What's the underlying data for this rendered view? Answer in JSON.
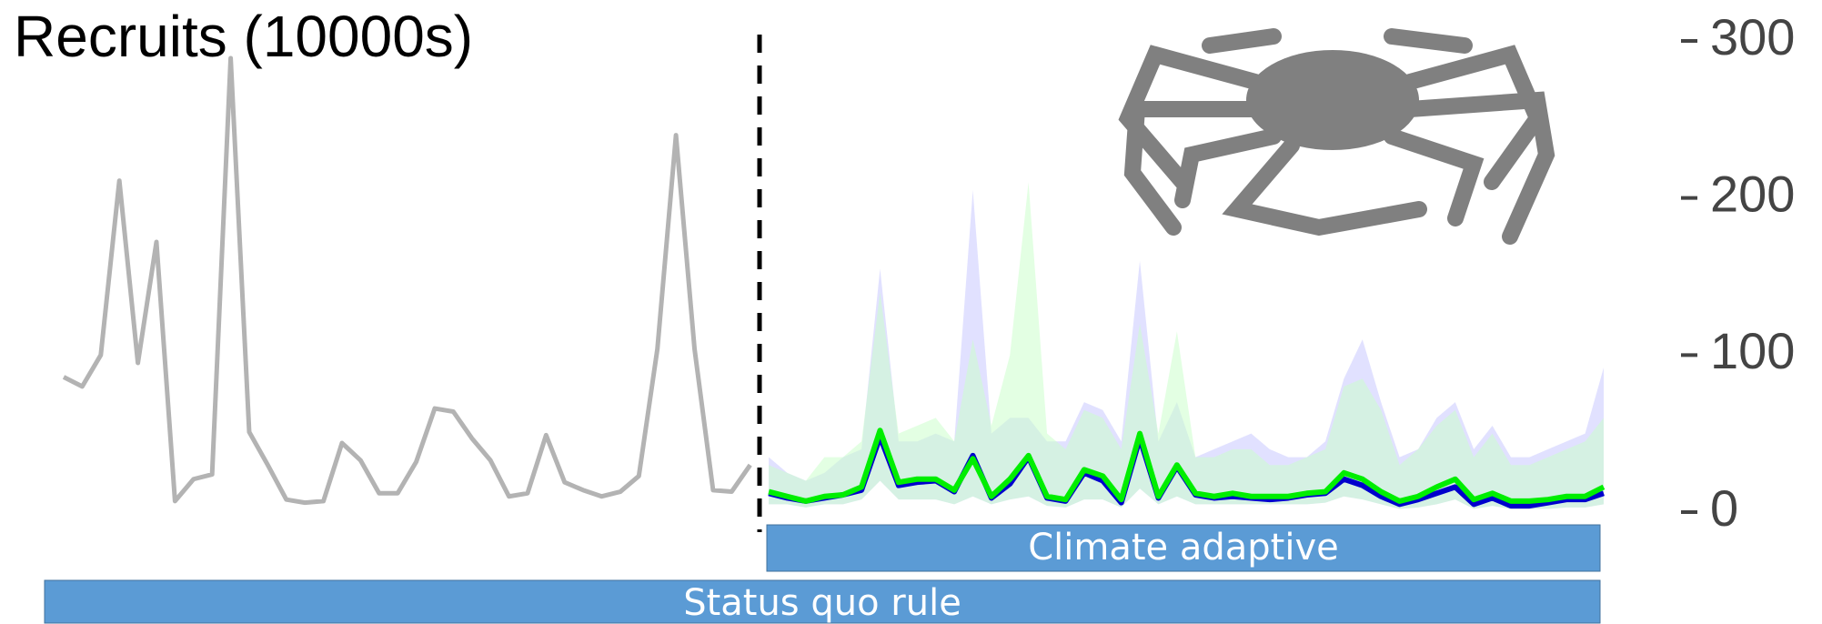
{
  "chart_data": {
    "type": "line",
    "title": "Recruits (10000s)",
    "categories": [
      null,
      null,
      null,
      null,
      null,
      null,
      null,
      null,
      null,
      null,
      null,
      null,
      null,
      null,
      null,
      null,
      null,
      null,
      null,
      null,
      null,
      null,
      null,
      null,
      null,
      null,
      null,
      null,
      null,
      null,
      null,
      null,
      null,
      null,
      null,
      null,
      null,
      null,
      null,
      null,
      null,
      null,
      null,
      null,
      null,
      null,
      null,
      null,
      null,
      null,
      null,
      null,
      null,
      null,
      null,
      null,
      null,
      null,
      null,
      null,
      null,
      null,
      null,
      null,
      null,
      null,
      null,
      null,
      null,
      null,
      null,
      null,
      null,
      null,
      null,
      null,
      null,
      null,
      null,
      null,
      null,
      null,
      null,
      null
    ],
    "series": [
      {
        "color": "#b3b3b3",
        "values": [
          86,
          80,
          100,
          211,
          95,
          172,
          7,
          21,
          24,
          289,
          51,
          30,
          8,
          6,
          7,
          44,
          33,
          12,
          12,
          32,
          66,
          64,
          47,
          33,
          10,
          12,
          49,
          19,
          14,
          10,
          13,
          23,
          104,
          240,
          104,
          14,
          13,
          30,
          null,
          null,
          null,
          null,
          null,
          null,
          null,
          null,
          null,
          null,
          null,
          null,
          null,
          null,
          null,
          null,
          null,
          null,
          null,
          null,
          null,
          null,
          null,
          null,
          null,
          null,
          null,
          null,
          null,
          null,
          null,
          null,
          null,
          null,
          null,
          null,
          null,
          null,
          null,
          null,
          null,
          null,
          null,
          null,
          null,
          null
        ]
      },
      {
        "color": "#0000cc",
        "fill": "#c8c8ff",
        "values": [
          null,
          null,
          null,
          null,
          null,
          null,
          null,
          null,
          null,
          null,
          null,
          null,
          null,
          null,
          null,
          null,
          null,
          null,
          null,
          null,
          null,
          null,
          null,
          null,
          null,
          null,
          null,
          null,
          null,
          null,
          null,
          null,
          null,
          null,
          null,
          null,
          null,
          null,
          12,
          9,
          7,
          9,
          11,
          14,
          48,
          17,
          19,
          20,
          13,
          36,
          9,
          18,
          35,
          9,
          7,
          25,
          20,
          6,
          47,
          9,
          29,
          11,
          9,
          10,
          9,
          8,
          9,
          11,
          12,
          21,
          17,
          10,
          5,
          8,
          12,
          16,
          5,
          9,
          4,
          4,
          6,
          8,
          8,
          12
        ],
        "upper": [
          null,
          null,
          null,
          null,
          null,
          null,
          null,
          null,
          null,
          null,
          null,
          null,
          null,
          null,
          null,
          null,
          null,
          null,
          null,
          null,
          null,
          null,
          null,
          null,
          null,
          null,
          null,
          null,
          null,
          null,
          null,
          null,
          null,
          null,
          null,
          null,
          null,
          null,
          35,
          25,
          20,
          25,
          35,
          40,
          155,
          45,
          45,
          50,
          45,
          205,
          50,
          60,
          60,
          45,
          45,
          70,
          65,
          45,
          160,
          45,
          70,
          35,
          40,
          45,
          50,
          40,
          35,
          35,
          45,
          85,
          110,
          70,
          35,
          40,
          60,
          70,
          40,
          55,
          35,
          35,
          40,
          45,
          50,
          92
        ],
        "lower": [
          null,
          null,
          null,
          null,
          null,
          null,
          null,
          null,
          null,
          null,
          null,
          null,
          null,
          null,
          null,
          null,
          null,
          null,
          null,
          null,
          null,
          null,
          null,
          null,
          null,
          null,
          null,
          null,
          null,
          null,
          null,
          null,
          null,
          null,
          null,
          null,
          null,
          null,
          5,
          5,
          3,
          5,
          5,
          8,
          20,
          8,
          8,
          8,
          5,
          10,
          5,
          8,
          10,
          4,
          3,
          8,
          8,
          3,
          15,
          5,
          10,
          5,
          5,
          5,
          5,
          5,
          5,
          5,
          6,
          10,
          8,
          5,
          2,
          3,
          5,
          8,
          2,
          4,
          2,
          2,
          2,
          3,
          3,
          5
        ]
      },
      {
        "color": "#00ee00",
        "fill": "#ccffcc",
        "values": [
          null,
          null,
          null,
          null,
          null,
          null,
          null,
          null,
          null,
          null,
          null,
          null,
          null,
          null,
          null,
          null,
          null,
          null,
          null,
          null,
          null,
          null,
          null,
          null,
          null,
          null,
          null,
          null,
          null,
          null,
          null,
          null,
          null,
          null,
          null,
          null,
          null,
          null,
          13,
          10,
          7,
          10,
          11,
          16,
          52,
          19,
          21,
          21,
          14,
          34,
          10,
          21,
          36,
          10,
          8,
          27,
          23,
          8,
          50,
          10,
          30,
          12,
          10,
          12,
          10,
          10,
          10,
          12,
          13,
          25,
          21,
          13,
          7,
          10,
          16,
          21,
          8,
          12,
          7,
          7,
          8,
          10,
          10,
          16
        ],
        "upper": [
          null,
          null,
          null,
          null,
          null,
          null,
          null,
          null,
          null,
          null,
          null,
          null,
          null,
          null,
          null,
          null,
          null,
          null,
          null,
          null,
          null,
          null,
          null,
          null,
          null,
          null,
          null,
          null,
          null,
          null,
          null,
          null,
          null,
          null,
          null,
          null,
          null,
          null,
          30,
          25,
          20,
          35,
          35,
          45,
          140,
          50,
          55,
          60,
          45,
          110,
          55,
          100,
          210,
          50,
          40,
          65,
          60,
          40,
          120,
          50,
          115,
          35,
          35,
          40,
          40,
          30,
          30,
          35,
          40,
          80,
          85,
          65,
          30,
          40,
          55,
          65,
          35,
          50,
          30,
          30,
          35,
          40,
          45,
          60
        ],
        "lower": [
          null,
          null,
          null,
          null,
          null,
          null,
          null,
          null,
          null,
          null,
          null,
          null,
          null,
          null,
          null,
          null,
          null,
          null,
          null,
          null,
          null,
          null,
          null,
          null,
          null,
          null,
          null,
          null,
          null,
          null,
          null,
          null,
          null,
          null,
          null,
          null,
          null,
          null,
          5,
          5,
          3,
          5,
          5,
          8,
          20,
          8,
          8,
          8,
          5,
          10,
          5,
          8,
          10,
          4,
          3,
          8,
          8,
          3,
          15,
          5,
          10,
          5,
          5,
          5,
          5,
          5,
          5,
          5,
          6,
          10,
          8,
          5,
          2,
          3,
          5,
          8,
          2,
          4,
          2,
          2,
          2,
          3,
          3,
          5
        ]
      }
    ],
    "ylim": [
      0,
      300
    ],
    "yticks": [
      0,
      100,
      200,
      300
    ],
    "annotations": [
      "Climate adaptive",
      "Status quo rule"
    ]
  }
}
